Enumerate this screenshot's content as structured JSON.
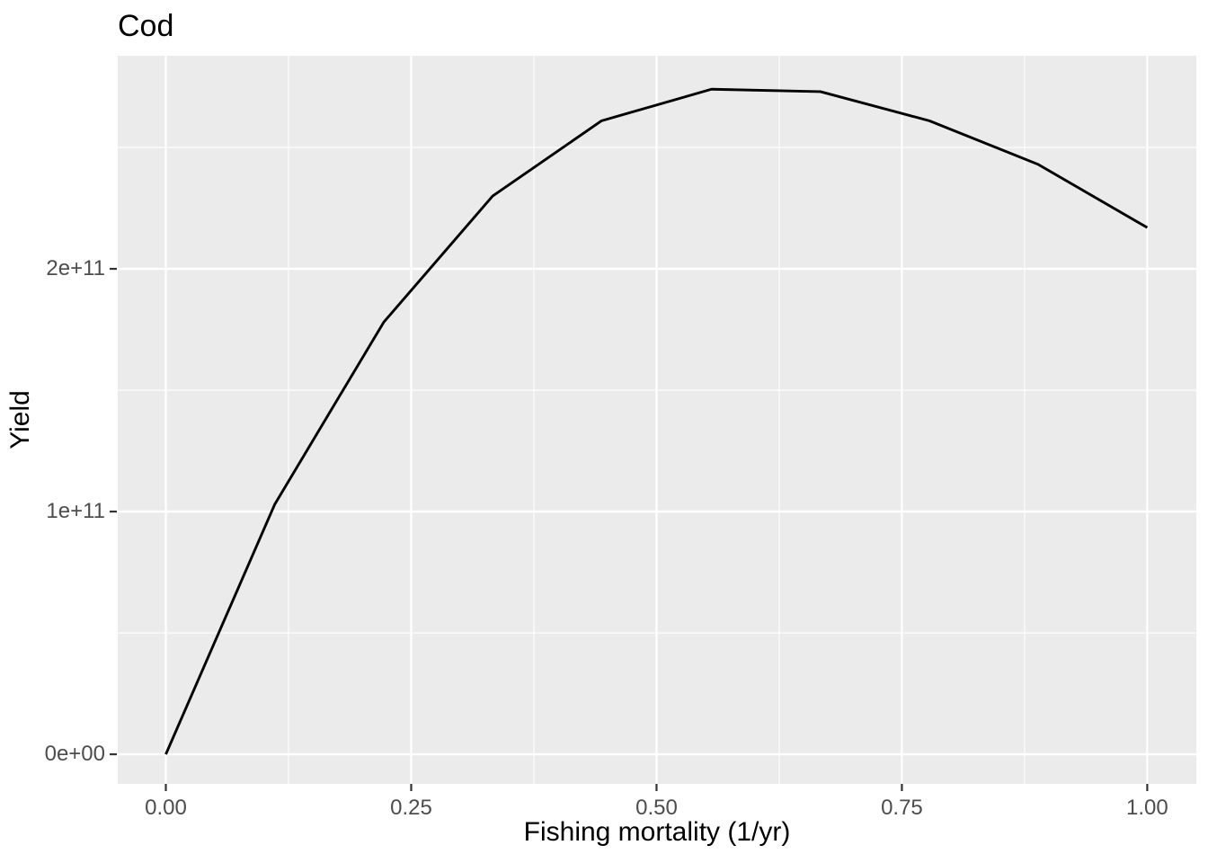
{
  "colors": {
    "panel_background": "#EBEBEB",
    "grid_major": "#FFFFFF",
    "grid_minor": "#FFFFFF",
    "line": "#000000",
    "tick_mark": "#333333",
    "tick_label": "#4D4D4D",
    "title_text": "#000000"
  },
  "chart_data": {
    "type": "line",
    "title": "Cod",
    "xlabel": "Fishing mortality (1/yr)",
    "ylabel": "Yield",
    "x": [
      0,
      0.111,
      0.222,
      0.333,
      0.444,
      0.556,
      0.667,
      0.778,
      0.889,
      1.0
    ],
    "y": [
      0,
      103000000000.0,
      178000000000.0,
      230000000000.0,
      261000000000.0,
      274000000000.0,
      273000000000.0,
      261000000000.0,
      243000000000.0,
      217000000000.0
    ],
    "x_ticks": {
      "values": [
        0,
        0.25,
        0.5,
        0.75,
        1.0
      ],
      "labels": [
        "0.00",
        "0.25",
        "0.50",
        "0.75",
        "1.00"
      ]
    },
    "y_ticks": {
      "values": [
        0,
        100000000000.0,
        200000000000.0
      ],
      "labels": [
        "0e+00",
        "1e+11",
        "2e+11"
      ]
    },
    "x_minor": [
      0.125,
      0.375,
      0.625,
      0.875
    ],
    "y_minor": [
      50000000000.0,
      150000000000.0,
      250000000000.0
    ],
    "xlim": [
      -0.049,
      1.05
    ],
    "ylim": [
      -12200000000.0,
      287800000000.0
    ],
    "grid": true,
    "legend": false
  }
}
